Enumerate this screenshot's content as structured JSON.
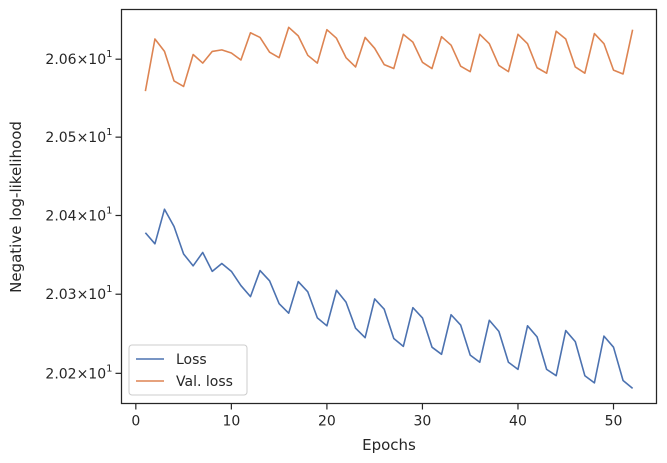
{
  "chart_data": {
    "type": "line",
    "xlabel": "Epochs",
    "ylabel": "Negative log-likelihood",
    "xlim": [
      -1.5,
      54.5
    ],
    "ylim": [
      20.162,
      20.664
    ],
    "y_scale": "log",
    "x_ticks": [
      0,
      10,
      20,
      30,
      40,
      50
    ],
    "x_tick_labels": [
      "0",
      "10",
      "20",
      "30",
      "40",
      "50"
    ],
    "y_ticks": [
      20.2,
      20.3,
      20.4,
      20.5,
      20.6
    ],
    "y_tick_labels": [
      {
        "mantissa": "2.02",
        "times": "×",
        "base": "10",
        "exp": "1"
      },
      {
        "mantissa": "2.03",
        "times": "×",
        "base": "10",
        "exp": "1"
      },
      {
        "mantissa": "2.04",
        "times": "×",
        "base": "10",
        "exp": "1"
      },
      {
        "mantissa": "2.05",
        "times": "×",
        "base": "10",
        "exp": "1"
      },
      {
        "mantissa": "2.06",
        "times": "×",
        "base": "10",
        "exp": "1"
      }
    ],
    "grid": false,
    "legend_position": "lower-left",
    "x": [
      1,
      2,
      3,
      4,
      5,
      6,
      7,
      8,
      9,
      10,
      11,
      12,
      13,
      14,
      15,
      16,
      17,
      18,
      19,
      20,
      21,
      22,
      23,
      24,
      25,
      26,
      27,
      28,
      29,
      30,
      31,
      32,
      33,
      34,
      35,
      36,
      37,
      38,
      39,
      40,
      41,
      42,
      43,
      44,
      45,
      46,
      47,
      48,
      49,
      50,
      51,
      52
    ],
    "series": [
      {
        "name": "Loss",
        "color": "#4c72b0",
        "values": [
          20.378,
          20.364,
          20.408,
          20.386,
          20.351,
          20.336,
          20.353,
          20.329,
          20.339,
          20.329,
          20.311,
          20.297,
          20.33,
          20.317,
          20.288,
          20.276,
          20.316,
          20.303,
          20.27,
          20.26,
          20.305,
          20.29,
          20.257,
          20.245,
          20.294,
          20.281,
          20.244,
          20.234,
          20.283,
          20.27,
          20.233,
          20.224,
          20.274,
          20.261,
          20.223,
          20.214,
          20.267,
          20.253,
          20.214,
          20.205,
          20.26,
          20.246,
          20.205,
          20.197,
          20.254,
          20.24,
          20.197,
          20.188,
          20.247,
          20.233,
          20.191,
          20.181
        ]
      },
      {
        "name": "Val. loss",
        "color": "#dd8452",
        "values": [
          20.559,
          20.626,
          20.61,
          20.572,
          20.565,
          20.606,
          20.595,
          20.61,
          20.612,
          20.608,
          20.599,
          20.634,
          20.628,
          20.609,
          20.602,
          20.641,
          20.63,
          20.605,
          20.595,
          20.638,
          20.627,
          20.602,
          20.59,
          20.628,
          20.614,
          20.593,
          20.588,
          20.632,
          20.622,
          20.596,
          20.588,
          20.629,
          20.618,
          20.591,
          20.584,
          20.632,
          20.62,
          20.592,
          20.584,
          20.632,
          20.62,
          20.589,
          20.582,
          20.636,
          20.626,
          20.59,
          20.582,
          20.633,
          20.62,
          20.586,
          20.581,
          20.638
        ]
      }
    ]
  }
}
